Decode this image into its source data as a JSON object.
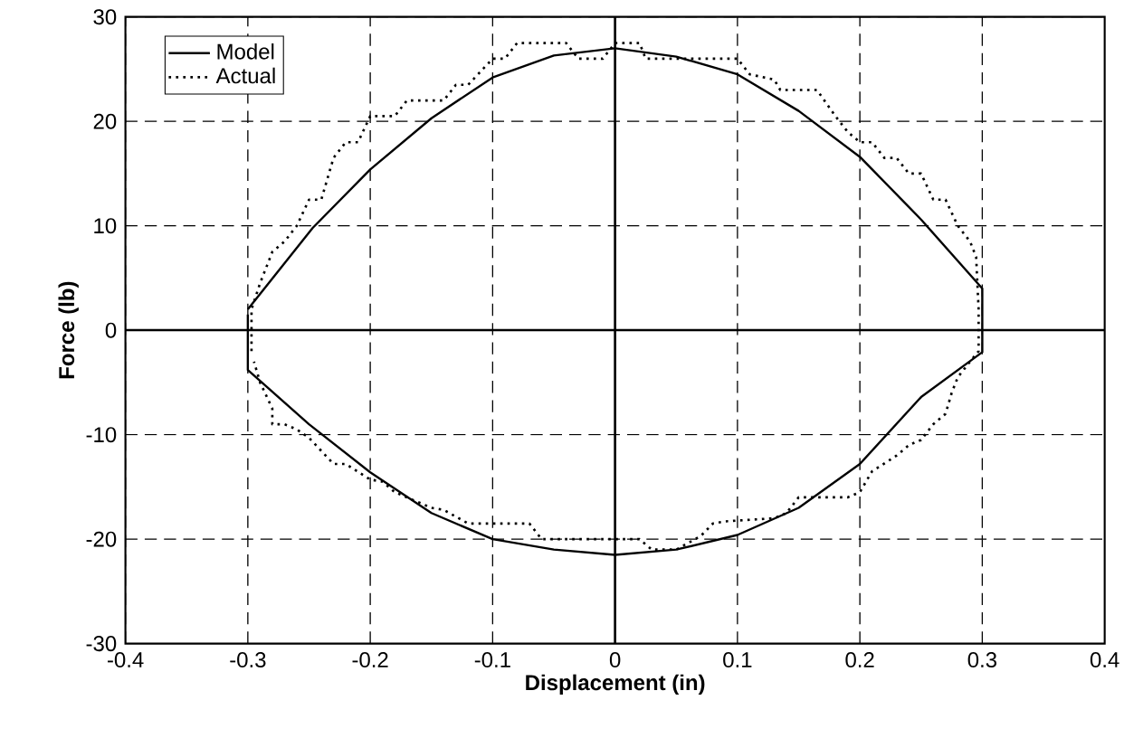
{
  "chart_data": {
    "type": "line",
    "xlabel": "Displacement (in)",
    "ylabel": "Force (lb)",
    "xlim": [
      -0.4,
      0.4
    ],
    "ylim": [
      -30,
      30
    ],
    "xticks": [
      -0.4,
      -0.3,
      -0.2,
      -0.1,
      0,
      0.1,
      0.2,
      0.3,
      0.4
    ],
    "yticks": [
      -30,
      -20,
      -10,
      0,
      10,
      20,
      30
    ],
    "grid": true,
    "legend": "top left",
    "marker": "none",
    "series": [
      {
        "name": "Model",
        "color": "#000000",
        "line_style": "solid",
        "x": [
          -0.3,
          -0.247,
          -0.2,
          -0.15,
          -0.1,
          -0.05,
          0,
          0.05,
          0.1,
          0.15,
          0.2,
          0.25,
          0.3,
          0.3,
          0.25,
          0.2,
          0.15,
          0.1,
          0.05,
          0,
          -0.05,
          -0.1,
          -0.15,
          -0.2,
          -0.25,
          -0.3,
          -0.3
        ],
        "values": [
          2,
          9.8,
          15.4,
          20.3,
          24.2,
          26.3,
          27,
          26.2,
          24.5,
          21,
          16.6,
          10.6,
          4,
          -2.1,
          -6.4,
          -12.8,
          -17,
          -19.6,
          -21,
          -21.5,
          -21,
          -20,
          -17.5,
          -13.6,
          -9,
          -3.8,
          1.5
        ]
      },
      {
        "name": "Actual",
        "color": "#000000",
        "line_style": "dotted",
        "x": [
          -0.297,
          -0.297,
          -0.29,
          -0.28,
          -0.27,
          -0.26,
          -0.25,
          -0.24,
          -0.23,
          -0.22,
          -0.21,
          -0.2,
          -0.18,
          -0.17,
          -0.14,
          -0.13,
          -0.12,
          -0.1,
          -0.09,
          -0.08,
          -0.04,
          -0.03,
          -0.01,
          0,
          0.02,
          0.025,
          0.1,
          0.11,
          0.13,
          0.135,
          0.165,
          0.18,
          0.19,
          0.2,
          0.21,
          0.22,
          0.23,
          0.24,
          0.25,
          0.26,
          0.27,
          0.28,
          0.29,
          0.295,
          0.297,
          0.297,
          0.29,
          0.28,
          0.275,
          0.27,
          0.26,
          0.25,
          0.24,
          0.23,
          0.21,
          0.2,
          0.19,
          0.15,
          0.14,
          0.13,
          0.09,
          0.08,
          0.07,
          0.05,
          0.03,
          0.02,
          -0.06,
          -0.07,
          -0.12,
          -0.14,
          -0.15,
          -0.17,
          -0.18,
          -0.19,
          -0.2,
          -0.22,
          -0.23,
          -0.25,
          -0.26,
          -0.27,
          -0.28,
          -0.28,
          -0.29,
          -0.295
        ],
        "values": [
          -2,
          2,
          4.5,
          7.5,
          8.5,
          10,
          12.5,
          12.5,
          16.5,
          18,
          18,
          20.5,
          20.5,
          22,
          22,
          23.5,
          23.5,
          26,
          26,
          27.5,
          27.5,
          26,
          26,
          27.5,
          27.5,
          26,
          26,
          24.5,
          24,
          23,
          23,
          20.5,
          19,
          18,
          18,
          16.5,
          16.5,
          15,
          15,
          12.5,
          12.5,
          10,
          8.5,
          7,
          2,
          -2,
          -3,
          -4.5,
          -6,
          -8,
          -9,
          -10.5,
          -11,
          -12,
          -13.5,
          -15.5,
          -16,
          -16,
          -17.5,
          -18,
          -18.3,
          -18.5,
          -19.7,
          -21,
          -21,
          -20,
          -20,
          -18.5,
          -18.5,
          -17.2,
          -17,
          -16,
          -15.5,
          -14.5,
          -14.3,
          -12.8,
          -12.8,
          -10.3,
          -9.5,
          -9,
          -9,
          -7.5,
          -5,
          -3
        ]
      }
    ]
  }
}
